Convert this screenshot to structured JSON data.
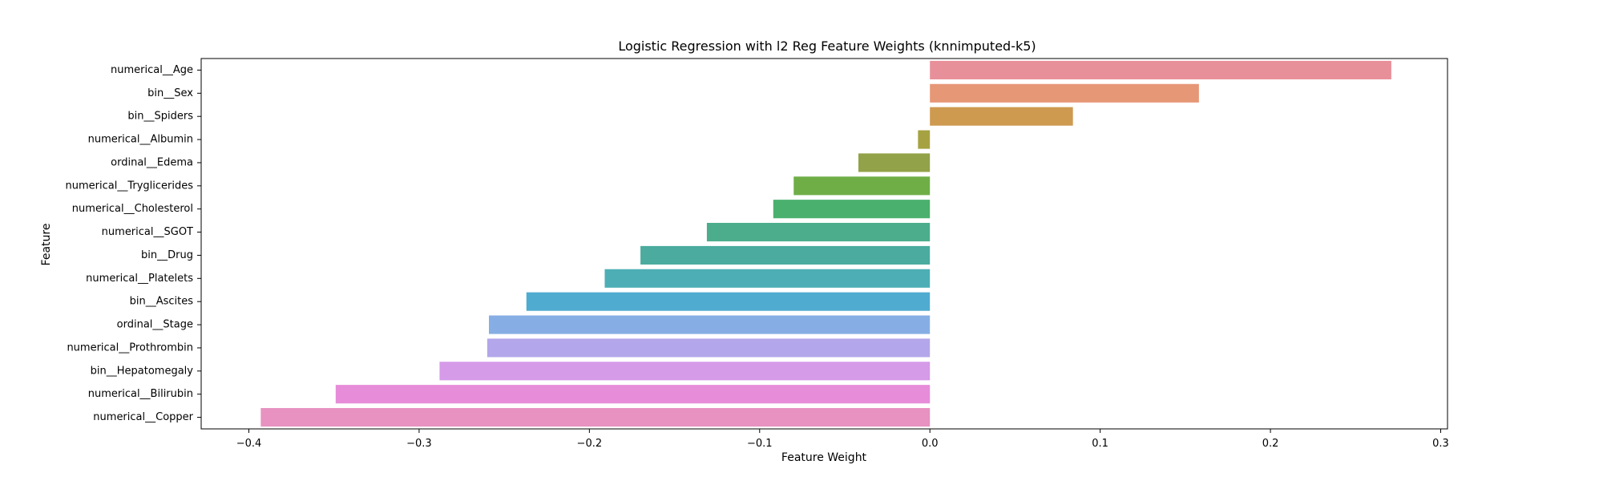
{
  "chart_data": {
    "type": "bar",
    "orientation": "horizontal",
    "title": "Logistic Regression with l2 Reg Feature Weights (knnimputed-k5)",
    "xlabel": "Feature Weight",
    "ylabel": "Feature",
    "xlim": [
      -0.428,
      0.304
    ],
    "xticks": [
      -0.4,
      -0.3,
      -0.2,
      -0.1,
      0.0,
      0.1,
      0.2,
      0.3
    ],
    "xtick_labels": [
      "−0.4",
      "−0.3",
      "−0.2",
      "−0.1",
      "0.0",
      "0.1",
      "0.2",
      "0.3"
    ],
    "grid": false,
    "legend": "none",
    "categories": [
      "numerical__Age",
      "bin__Sex",
      "bin__Spiders",
      "numerical__Albumin",
      "ordinal__Edema",
      "numerical__Tryglicerides",
      "numerical__Cholesterol",
      "numerical__SGOT",
      "bin__Drug",
      "numerical__Platelets",
      "bin__Ascites",
      "ordinal__Stage",
      "numerical__Prothrombin",
      "bin__Hepatomegaly",
      "numerical__Bilirubin",
      "numerical__Copper"
    ],
    "values": [
      0.271,
      0.158,
      0.084,
      -0.007,
      -0.042,
      -0.08,
      -0.092,
      -0.131,
      -0.17,
      -0.191,
      -0.237,
      -0.259,
      -0.26,
      -0.288,
      -0.349,
      -0.393
    ],
    "colors": [
      "#e8909a",
      "#e69776",
      "#cd9a50",
      "#a6a242",
      "#91a248",
      "#6fae46",
      "#49b06d",
      "#4bad8c",
      "#4aab9e",
      "#4daeb5",
      "#50abd0",
      "#86aee4",
      "#b4a6ea",
      "#d59ae8",
      "#e78cd9",
      "#e792c0"
    ]
  }
}
